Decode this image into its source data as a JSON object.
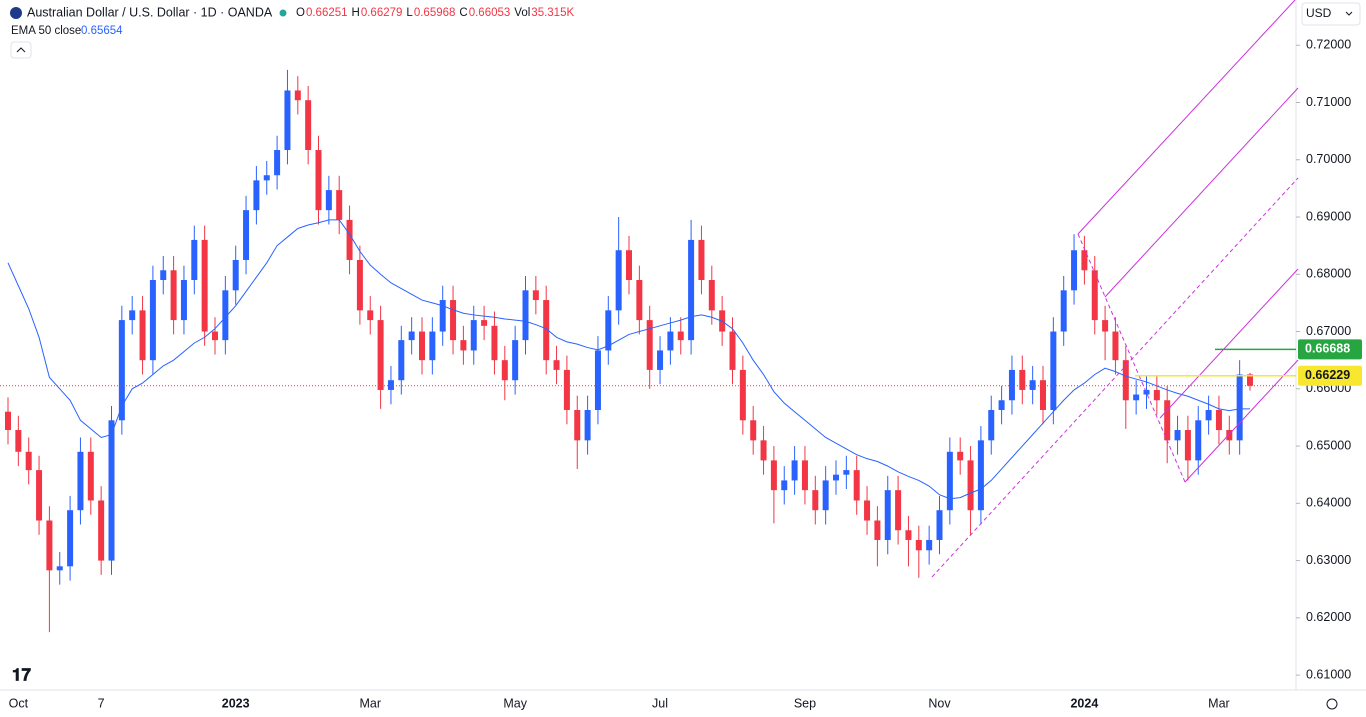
{
  "chart_data": {
    "type": "candlestick",
    "title": "Australian Dollar / U.S. Dollar · 1D · OANDA",
    "header_items": [
      {
        "key": "O",
        "value": "0.66251"
      },
      {
        "key": "H",
        "value": "0.66279"
      },
      {
        "key": "L",
        "value": "0.65968"
      },
      {
        "key": "C",
        "value": "0.66053"
      },
      {
        "key": "Vol",
        "value": "35.315K"
      }
    ],
    "currency": "USD",
    "up_color": "#2962ff",
    "down_color": "#f23645",
    "ylim": [
      0.6074,
      0.7279
    ],
    "yticks": [
      {
        "value": 0.61,
        "label": "0.61000"
      },
      {
        "value": 0.62,
        "label": "0.62000"
      },
      {
        "value": 0.63,
        "label": "0.63000"
      },
      {
        "value": 0.64,
        "label": "0.64000"
      },
      {
        "value": 0.65,
        "label": "0.65000"
      },
      {
        "value": 0.66,
        "label": "0.66000"
      },
      {
        "value": 0.67,
        "label": "0.67000"
      },
      {
        "value": 0.68,
        "label": "0.68000"
      },
      {
        "value": 0.69,
        "label": "0.69000"
      },
      {
        "value": 0.7,
        "label": "0.70000"
      },
      {
        "value": 0.71,
        "label": "0.71000"
      },
      {
        "value": 0.72,
        "label": "0.72000"
      }
    ],
    "categories": [
      null,
      "Oct",
      null,
      null,
      null,
      null,
      null,
      null,
      null,
      "7",
      null,
      null,
      null,
      null,
      null,
      null,
      null,
      null,
      null,
      null,
      null,
      null,
      "2023",
      null,
      null,
      null,
      null,
      null,
      null,
      null,
      null,
      null,
      null,
      null,
      null,
      "Mar",
      null,
      null,
      null,
      null,
      null,
      null,
      null,
      null,
      null,
      null,
      null,
      null,
      null,
      "May",
      null,
      null,
      null,
      null,
      null,
      null,
      null,
      null,
      null,
      null,
      null,
      null,
      null,
      "Jul",
      null,
      null,
      null,
      null,
      null,
      null,
      null,
      null,
      null,
      null,
      null,
      null,
      null,
      "Sep",
      null,
      null,
      null,
      null,
      null,
      null,
      null,
      null,
      null,
      null,
      null,
      null,
      "Nov",
      null,
      null,
      null,
      null,
      null,
      null,
      null,
      null,
      null,
      null,
      null,
      null,
      null,
      "2024",
      null,
      null,
      null,
      null,
      null,
      null,
      null,
      null,
      null,
      null,
      null,
      null,
      "Mar",
      null,
      null,
      null
    ],
    "open": [
      0.656,
      0.6528,
      0.649,
      0.6458,
      0.637,
      0.6283,
      0.629,
      0.6388,
      0.649,
      0.6405,
      0.63,
      0.6545,
      0.672,
      0.6737,
      0.665,
      0.679,
      0.6807,
      0.672,
      0.679,
      0.686,
      0.67,
      0.6685,
      0.6772,
      0.6825,
      0.6912,
      0.6964,
      0.6973,
      0.7017,
      0.7121,
      0.7104,
      0.7017,
      0.6912,
      0.6947,
      0.6895,
      0.6825,
      0.6737,
      0.672,
      0.6598,
      0.6615,
      0.6685,
      0.67,
      0.665,
      0.67,
      0.6755,
      0.6685,
      0.6667,
      0.672,
      0.671,
      0.665,
      0.6615,
      0.6685,
      0.6772,
      0.6755,
      0.665,
      0.6633,
      0.6563,
      0.651,
      0.6563,
      0.6667,
      0.6737,
      0.6842,
      0.679,
      0.672,
      0.6633,
      0.6667,
      0.67,
      0.6685,
      0.686,
      0.679,
      0.6737,
      0.67,
      0.6633,
      0.6545,
      0.651,
      0.6475,
      0.6423,
      0.644,
      0.6475,
      0.6423,
      0.6388,
      0.644,
      0.645,
      0.6458,
      0.6405,
      0.637,
      0.6336,
      0.6423,
      0.6353,
      0.6336,
      0.6318,
      0.6336,
      0.6388,
      0.649,
      0.6475,
      0.6388,
      0.651,
      0.6563,
      0.658,
      0.6633,
      0.6598,
      0.6615,
      0.6563,
      0.67,
      0.6772,
      0.6842,
      0.6807,
      0.672,
      0.67,
      0.665,
      0.658,
      0.659,
      0.6598,
      0.658,
      0.651,
      0.6528,
      0.6475,
      0.6545,
      0.6563,
      0.6528,
      0.651,
      0.66251
    ],
    "high": [
      0.6585,
      0.6553,
      0.6515,
      0.6483,
      0.6395,
      0.6315,
      0.6413,
      0.6515,
      0.6515,
      0.643,
      0.657,
      0.6745,
      0.6762,
      0.6762,
      0.6815,
      0.6832,
      0.6832,
      0.6815,
      0.6885,
      0.6885,
      0.6725,
      0.6797,
      0.685,
      0.6937,
      0.6989,
      0.6998,
      0.7042,
      0.7157,
      0.7146,
      0.7129,
      0.7042,
      0.6972,
      0.6972,
      0.692,
      0.685,
      0.6762,
      0.6745,
      0.664,
      0.671,
      0.6725,
      0.6725,
      0.6725,
      0.678,
      0.678,
      0.671,
      0.6745,
      0.6745,
      0.6735,
      0.6675,
      0.671,
      0.6797,
      0.6797,
      0.678,
      0.6675,
      0.6658,
      0.6588,
      0.6588,
      0.6692,
      0.6762,
      0.69,
      0.6867,
      0.6815,
      0.6745,
      0.6692,
      0.6725,
      0.6725,
      0.6895,
      0.6885,
      0.6815,
      0.6762,
      0.6725,
      0.6658,
      0.657,
      0.6535,
      0.65,
      0.6465,
      0.65,
      0.65,
      0.6448,
      0.6465,
      0.6475,
      0.6483,
      0.6483,
      0.643,
      0.6395,
      0.6448,
      0.6448,
      0.6378,
      0.6361,
      0.6361,
      0.6413,
      0.6515,
      0.6515,
      0.65,
      0.6535,
      0.6588,
      0.6605,
      0.6658,
      0.6658,
      0.664,
      0.664,
      0.6725,
      0.6797,
      0.687,
      0.6867,
      0.6832,
      0.6745,
      0.6725,
      0.6675,
      0.6615,
      0.6623,
      0.6623,
      0.6605,
      0.6553,
      0.6553,
      0.657,
      0.6588,
      0.6588,
      0.6553,
      0.665,
      0.66279
    ],
    "low": [
      0.6503,
      0.6465,
      0.6433,
      0.6345,
      0.6175,
      0.6258,
      0.6265,
      0.6363,
      0.638,
      0.6275,
      0.6275,
      0.652,
      0.6695,
      0.6625,
      0.6625,
      0.6765,
      0.6695,
      0.6695,
      0.6765,
      0.6675,
      0.666,
      0.666,
      0.6747,
      0.68,
      0.6887,
      0.6939,
      0.6948,
      0.6992,
      0.7079,
      0.6992,
      0.6887,
      0.6887,
      0.687,
      0.68,
      0.6712,
      0.6695,
      0.6565,
      0.6573,
      0.659,
      0.666,
      0.6625,
      0.6625,
      0.6675,
      0.666,
      0.6642,
      0.6642,
      0.6685,
      0.6625,
      0.658,
      0.659,
      0.666,
      0.673,
      0.6625,
      0.6608,
      0.6538,
      0.646,
      0.6485,
      0.6538,
      0.6642,
      0.6712,
      0.6765,
      0.6695,
      0.66,
      0.6608,
      0.6642,
      0.666,
      0.666,
      0.6765,
      0.6712,
      0.6675,
      0.6608,
      0.652,
      0.6485,
      0.645,
      0.6365,
      0.6398,
      0.6415,
      0.6398,
      0.6363,
      0.6363,
      0.6415,
      0.6425,
      0.638,
      0.6345,
      0.629,
      0.6311,
      0.6328,
      0.629,
      0.627,
      0.6293,
      0.6311,
      0.6363,
      0.645,
      0.6345,
      0.6363,
      0.6485,
      0.6538,
      0.6555,
      0.6573,
      0.6573,
      0.6538,
      0.6538,
      0.6675,
      0.6747,
      0.6782,
      0.6695,
      0.665,
      0.6625,
      0.653,
      0.6555,
      0.6565,
      0.6555,
      0.647,
      0.6485,
      0.644,
      0.645,
      0.652,
      0.6503,
      0.6485,
      0.6485,
      0.65968
    ],
    "close": [
      0.6528,
      0.649,
      0.6458,
      0.637,
      0.6283,
      0.629,
      0.6388,
      0.649,
      0.6405,
      0.63,
      0.6545,
      0.672,
      0.6737,
      0.665,
      0.679,
      0.6807,
      0.672,
      0.679,
      0.686,
      0.67,
      0.6685,
      0.6772,
      0.6825,
      0.6912,
      0.6964,
      0.6973,
      0.7017,
      0.7121,
      0.7104,
      0.7017,
      0.6912,
      0.6947,
      0.6895,
      0.6825,
      0.6737,
      0.672,
      0.6598,
      0.6615,
      0.6685,
      0.67,
      0.665,
      0.67,
      0.6755,
      0.6685,
      0.6667,
      0.672,
      0.671,
      0.665,
      0.6615,
      0.6685,
      0.6772,
      0.6755,
      0.665,
      0.6633,
      0.6563,
      0.651,
      0.6563,
      0.6667,
      0.6737,
      0.6842,
      0.679,
      0.672,
      0.6633,
      0.6667,
      0.67,
      0.6685,
      0.686,
      0.679,
      0.6737,
      0.67,
      0.6633,
      0.6545,
      0.651,
      0.6475,
      0.6423,
      0.644,
      0.6475,
      0.6423,
      0.6388,
      0.644,
      0.645,
      0.6458,
      0.6405,
      0.637,
      0.6336,
      0.6423,
      0.6353,
      0.6336,
      0.6318,
      0.6336,
      0.6388,
      0.649,
      0.6475,
      0.6388,
      0.651,
      0.6563,
      0.658,
      0.6633,
      0.6598,
      0.6615,
      0.6563,
      0.67,
      0.6772,
      0.6842,
      0.6807,
      0.672,
      0.67,
      0.665,
      0.658,
      0.659,
      0.6598,
      0.658,
      0.651,
      0.6528,
      0.6475,
      0.6545,
      0.6563,
      0.6528,
      0.651,
      0.6625,
      0.66053
    ],
    "ema": {
      "name": "EMA 50 close",
      "last": "0.65654",
      "color": "#2962ff",
      "values": [
        0.682,
        0.678,
        0.674,
        0.669,
        0.662,
        0.66,
        0.658,
        0.6545,
        0.653,
        0.6515,
        0.652,
        0.657,
        0.66,
        0.661,
        0.6625,
        0.664,
        0.665,
        0.6665,
        0.668,
        0.669,
        0.6705,
        0.6725,
        0.6745,
        0.677,
        0.6795,
        0.682,
        0.685,
        0.6865,
        0.688,
        0.6886,
        0.689,
        0.6895,
        0.6895,
        0.687,
        0.684,
        0.6816,
        0.68,
        0.6785,
        0.6775,
        0.6765,
        0.6755,
        0.675,
        0.6745,
        0.6738,
        0.6732,
        0.6729,
        0.6727,
        0.6725,
        0.6722,
        0.672,
        0.6718,
        0.6712,
        0.6705,
        0.669,
        0.6682,
        0.6678,
        0.6672,
        0.6668,
        0.6675,
        0.6685,
        0.6695,
        0.67,
        0.6705,
        0.671,
        0.6715,
        0.672,
        0.6726,
        0.6729,
        0.6725,
        0.6718,
        0.6705,
        0.668,
        0.665,
        0.6625,
        0.6595,
        0.6575,
        0.656,
        0.6545,
        0.653,
        0.6515,
        0.6505,
        0.6495,
        0.6485,
        0.6478,
        0.6473,
        0.6465,
        0.6455,
        0.6447,
        0.644,
        0.643,
        0.6415,
        0.6408,
        0.641,
        0.6418,
        0.6425,
        0.644,
        0.646,
        0.648,
        0.65,
        0.652,
        0.654,
        0.656,
        0.658,
        0.6598,
        0.661,
        0.6625,
        0.6636,
        0.663,
        0.6622,
        0.6617,
        0.6612,
        0.6605,
        0.6598,
        0.6592,
        0.6587,
        0.658,
        0.6573,
        0.6565,
        0.6562,
        0.6565,
        0.6565
      ]
    },
    "price_labels": [
      {
        "value": 0.66688,
        "label": "0.66688",
        "color": "#26a541",
        "text_color": "#ffffff"
      },
      {
        "value": 0.66229,
        "label": "0.66229",
        "color": "#f7e82f",
        "text_color": "#131722"
      }
    ]
  }
}
